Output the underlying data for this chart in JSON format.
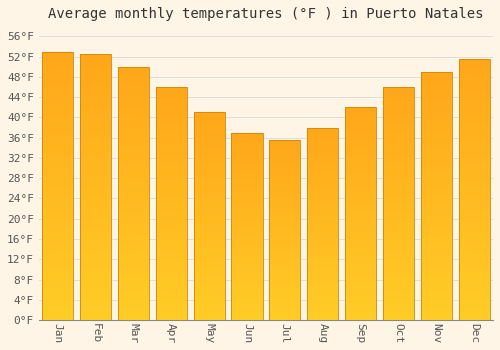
{
  "title": "Average monthly temperatures (°F ) in Puerto Natales",
  "months": [
    "Jan",
    "Feb",
    "Mar",
    "Apr",
    "May",
    "Jun",
    "Jul",
    "Aug",
    "Sep",
    "Oct",
    "Nov",
    "Dec"
  ],
  "values": [
    53.0,
    52.5,
    50.0,
    46.0,
    41.0,
    37.0,
    35.5,
    38.0,
    42.0,
    46.0,
    49.0,
    51.5
  ],
  "bar_color_bottom": "#FFC200",
  "bar_color_top": "#FFB347",
  "bar_edge_color": "#CC8800",
  "background_color": "#FFF5E6",
  "plot_bg_color": "#FFF5E6",
  "grid_color": "#DDDDDD",
  "ylim": [
    0,
    58
  ],
  "ytick_step": 4,
  "title_fontsize": 10,
  "tick_fontsize": 8,
  "font_family": "monospace"
}
